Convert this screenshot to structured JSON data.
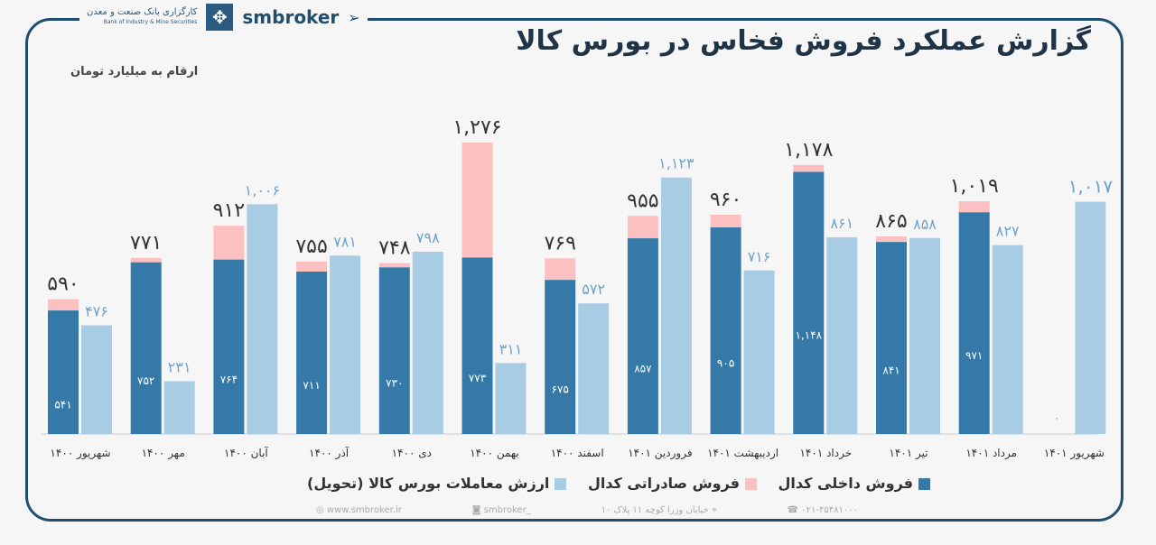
{
  "header": {
    "title": "گزارش عملکرد فروش فخاس در بورس کالا",
    "unit_note": "ارقام به میلیارد تومان",
    "brand": "smbroker",
    "logo_text": "کارگزاری بانک صنعت و معدن",
    "logo_subtext": "Bank of Industry & Mine Securities"
  },
  "colors": {
    "domestic": "#3579a8",
    "export": "#fcc0c0",
    "exchange": "#a8cce4",
    "frame": "#1f4e6e"
  },
  "chart_data": {
    "type": "bar",
    "title": "گزارش عملکرد فروش فخاس در بورس کالا",
    "categories": [
      "شهریور ۱۴۰۰",
      "مهر ۱۴۰۰",
      "آبان ۱۴۰۰",
      "آذر ۱۴۰۰",
      "دی ۱۴۰۰",
      "بهمن ۱۴۰۰",
      "اسفند ۱۴۰۰",
      "فروردین ۱۴۰۱",
      "اردیبهشت ۱۴۰۱",
      "خرداد ۱۴۰۱",
      "تیر ۱۴۰۱",
      "مرداد ۱۴۰۱",
      "شهریور ۱۴۰۱"
    ],
    "series": [
      {
        "name": "فروش داخلی کدال",
        "stack": "kedal",
        "values": [
          541,
          752,
          764,
          711,
          730,
          773,
          675,
          857,
          905,
          1148,
          841,
          971,
          0
        ]
      },
      {
        "name": "فروش صادراتی کدال",
        "stack": "kedal",
        "values": [
          49,
          19,
          148,
          44,
          18,
          503,
          94,
          98,
          55,
          30,
          24,
          48,
          0
        ]
      },
      {
        "name": "ارزش معاملات بورس کالا (تحویل)",
        "stack": "exchange",
        "values": [
          476,
          231,
          1006,
          781,
          798,
          311,
          572,
          1123,
          716,
          861,
          858,
          827,
          1017
        ]
      }
    ],
    "kedal_totals": [
      590,
      771,
      912,
      755,
      748,
      1276,
      769,
      955,
      960,
      1178,
      865,
      1019,
      null
    ],
    "ylim": [
      0,
      1300
    ],
    "grid": false,
    "legend_position": "bottom"
  },
  "footer": {
    "website": "www.smbroker.ir",
    "instagram": "smbroker_",
    "address": "خیابان وزرا کوچه ۱۱ پلاک ۱۰",
    "phone": "۰۲۱-۴۵۴۸۱۰۰۰"
  }
}
